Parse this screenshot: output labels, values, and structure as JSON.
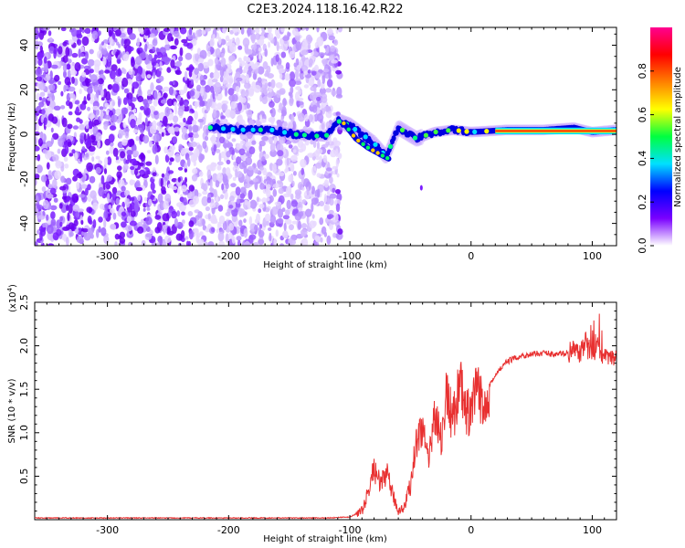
{
  "title": "C2E3.2024.118.16.42.R22",
  "chart_data": [
    {
      "type": "heatmap",
      "xlabel": "Height of straight line (km)",
      "ylabel": "Frequency (Hz)",
      "xlim": [
        -360,
        120
      ],
      "ylim": [
        -50,
        48
      ],
      "xticks": [
        -300,
        -200,
        -100,
        0,
        100
      ],
      "yticks": [
        -40,
        -20,
        0,
        20,
        40
      ],
      "colorbar": {
        "label": "Normalized spectral amplitude",
        "range": [
          0,
          1
        ],
        "ticks": [
          "0.0",
          "0.2",
          "0.4",
          "0.6",
          "0.8"
        ],
        "colors": [
          "#ffffff",
          "#7a00ff",
          "#0000ff",
          "#00e0ff",
          "#00ff40",
          "#ffff00",
          "#ff8000",
          "#ff0000",
          "#ff0090"
        ]
      },
      "noise_region_x": [
        -360,
        -108
      ],
      "ridge": [
        [
          -215,
          3
        ],
        [
          -190,
          2
        ],
        [
          -165,
          2
        ],
        [
          -145,
          0
        ],
        [
          -120,
          -1
        ],
        [
          -110,
          6
        ],
        [
          -100,
          4
        ],
        [
          -90,
          0
        ],
        [
          -80,
          -4
        ],
        [
          -70,
          -10
        ],
        [
          -60,
          3
        ],
        [
          -45,
          -2
        ],
        [
          -30,
          1
        ],
        [
          -15,
          2
        ],
        [
          0,
          1
        ],
        [
          30,
          2
        ],
        [
          60,
          2
        ],
        [
          85,
          3
        ],
        [
          100,
          1
        ],
        [
          120,
          2
        ]
      ],
      "branch": [
        [
          -105,
          5
        ],
        [
          -95,
          -2
        ],
        [
          -85,
          -6
        ],
        [
          -75,
          -9
        ],
        [
          -68,
          -11
        ]
      ]
    },
    {
      "type": "line",
      "xlabel": "Height of straight line (km)",
      "ylabel": "SNR (10 * v/v)",
      "yscale_label": "(x10",
      "yscale_exp": "4",
      "xlim": [
        -360,
        120
      ],
      "ylim": [
        0,
        2.5
      ],
      "xticks": [
        -300,
        -200,
        -100,
        0,
        100
      ],
      "yticks": [
        "0.5",
        "1.0",
        "1.5",
        "2.0",
        "2.5"
      ],
      "line_color": "#e83030",
      "series": [
        {
          "x": [
            -360,
            -300,
            -200,
            -120,
            -100,
            -90,
            -85,
            -80,
            -75,
            -70,
            -65,
            -60,
            -55,
            -50,
            -45,
            -40,
            -35,
            -30,
            -25,
            -20,
            -15,
            -10,
            -5,
            0,
            5,
            10,
            15,
            20,
            25,
            30,
            40,
            50,
            60,
            70,
            80,
            85,
            90,
            95,
            100,
            105,
            110,
            120
          ],
          "y": [
            0.02,
            0.02,
            0.02,
            0.02,
            0.03,
            0.1,
            0.3,
            0.6,
            0.4,
            0.55,
            0.3,
            0.1,
            0.15,
            0.4,
            0.9,
            1.1,
            0.6,
            1.3,
            0.9,
            1.45,
            1.1,
            1.6,
            1.25,
            1.2,
            1.5,
            1.3,
            1.55,
            1.65,
            1.75,
            1.82,
            1.88,
            1.9,
            1.92,
            1.9,
            1.92,
            1.95,
            1.9,
            2.05,
            1.9,
            2.0,
            1.86,
            1.85
          ]
        }
      ]
    }
  ]
}
